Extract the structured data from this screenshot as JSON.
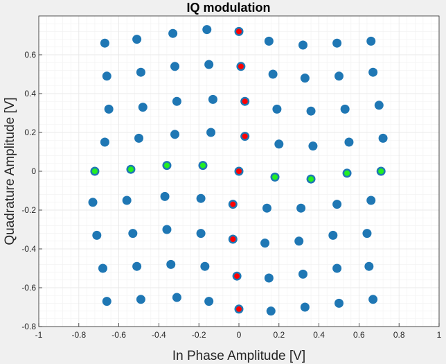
{
  "chart_data": {
    "type": "scatter",
    "title": "IQ modulation",
    "xlabel": "In Phase Amplitude [V]",
    "ylabel": "Quadrature Amplitude [V]",
    "xlim": [
      -1,
      1
    ],
    "ylim": [
      -0.8,
      0.8
    ],
    "xticks": [
      "-1",
      "-0.8",
      "-0.6",
      "-0.4",
      "-0.2",
      "0",
      "0.2",
      "0.4",
      "0.6",
      "0.8",
      "1"
    ],
    "yticks": [
      "-0.8",
      "-0.6",
      "-0.4",
      "-0.2",
      "0",
      "0.2",
      "0.4",
      "0.6"
    ],
    "grid": "on",
    "colors": {
      "point": "#1f77b4",
      "highlight_red": "#ff0000",
      "highlight_green": "#22ee22",
      "plot_bg": "#ffffff",
      "grid": "#e6e6e6"
    },
    "series": [
      {
        "marker": "blue",
        "points": [
          [
            -0.67,
            0.66
          ],
          [
            -0.51,
            0.68
          ],
          [
            -0.33,
            0.71
          ],
          [
            -0.16,
            0.73
          ],
          [
            0.0,
            0.72
          ],
          [
            0.15,
            0.67
          ],
          [
            0.32,
            0.65
          ],
          [
            0.49,
            0.66
          ],
          [
            0.66,
            0.67
          ],
          [
            -0.66,
            0.49
          ],
          [
            -0.49,
            0.51
          ],
          [
            -0.32,
            0.54
          ],
          [
            -0.15,
            0.55
          ],
          [
            0.01,
            0.54
          ],
          [
            0.17,
            0.5
          ],
          [
            0.33,
            0.48
          ],
          [
            0.5,
            0.49
          ],
          [
            0.67,
            0.51
          ],
          [
            -0.65,
            0.32
          ],
          [
            -0.48,
            0.33
          ],
          [
            -0.31,
            0.36
          ],
          [
            -0.13,
            0.37
          ],
          [
            0.03,
            0.36
          ],
          [
            0.19,
            0.32
          ],
          [
            0.36,
            0.31
          ],
          [
            0.53,
            0.32
          ],
          [
            0.7,
            0.34
          ],
          [
            -0.67,
            0.15
          ],
          [
            -0.5,
            0.17
          ],
          [
            -0.32,
            0.19
          ],
          [
            -0.14,
            0.2
          ],
          [
            0.03,
            0.18
          ],
          [
            0.2,
            0.14
          ],
          [
            0.37,
            0.13
          ],
          [
            0.55,
            0.15
          ],
          [
            0.72,
            0.17
          ],
          [
            -0.72,
            0.0
          ],
          [
            -0.54,
            0.01
          ],
          [
            -0.36,
            0.03
          ],
          [
            -0.18,
            0.03
          ],
          [
            0.0,
            0.0
          ],
          [
            0.18,
            -0.03
          ],
          [
            0.36,
            -0.04
          ],
          [
            0.54,
            -0.01
          ],
          [
            0.71,
            0.0
          ],
          [
            -0.73,
            -0.16
          ],
          [
            -0.56,
            -0.15
          ],
          [
            -0.37,
            -0.13
          ],
          [
            -0.19,
            -0.14
          ],
          [
            -0.03,
            -0.17
          ],
          [
            0.14,
            -0.19
          ],
          [
            0.31,
            -0.19
          ],
          [
            0.49,
            -0.17
          ],
          [
            0.66,
            -0.15
          ],
          [
            -0.71,
            -0.33
          ],
          [
            -0.53,
            -0.32
          ],
          [
            -0.36,
            -0.3
          ],
          [
            -0.19,
            -0.32
          ],
          [
            -0.03,
            -0.35
          ],
          [
            0.13,
            -0.37
          ],
          [
            0.3,
            -0.36
          ],
          [
            0.47,
            -0.33
          ],
          [
            0.64,
            -0.32
          ],
          [
            -0.68,
            -0.5
          ],
          [
            -0.51,
            -0.49
          ],
          [
            -0.34,
            -0.48
          ],
          [
            -0.17,
            -0.49
          ],
          [
            -0.01,
            -0.54
          ],
          [
            0.15,
            -0.55
          ],
          [
            0.32,
            -0.53
          ],
          [
            0.49,
            -0.5
          ],
          [
            0.65,
            -0.49
          ],
          [
            -0.66,
            -0.67
          ],
          [
            -0.49,
            -0.66
          ],
          [
            -0.31,
            -0.65
          ],
          [
            -0.15,
            -0.67
          ],
          [
            0.0,
            -0.71
          ],
          [
            0.16,
            -0.72
          ],
          [
            0.33,
            -0.7
          ],
          [
            0.5,
            -0.68
          ],
          [
            0.67,
            -0.66
          ]
        ]
      },
      {
        "marker": "red",
        "points": [
          [
            0.0,
            0.72
          ],
          [
            0.01,
            0.54
          ],
          [
            0.03,
            0.36
          ],
          [
            0.03,
            0.18
          ],
          [
            0.0,
            0.0
          ],
          [
            -0.03,
            -0.17
          ],
          [
            -0.03,
            -0.35
          ],
          [
            -0.01,
            -0.54
          ],
          [
            0.0,
            -0.71
          ]
        ]
      },
      {
        "marker": "green",
        "points": [
          [
            -0.72,
            0.0
          ],
          [
            -0.54,
            0.01
          ],
          [
            -0.36,
            0.03
          ],
          [
            -0.18,
            0.03
          ],
          [
            0.18,
            -0.03
          ],
          [
            0.36,
            -0.04
          ],
          [
            0.54,
            -0.01
          ],
          [
            0.71,
            0.0
          ]
        ]
      }
    ]
  }
}
